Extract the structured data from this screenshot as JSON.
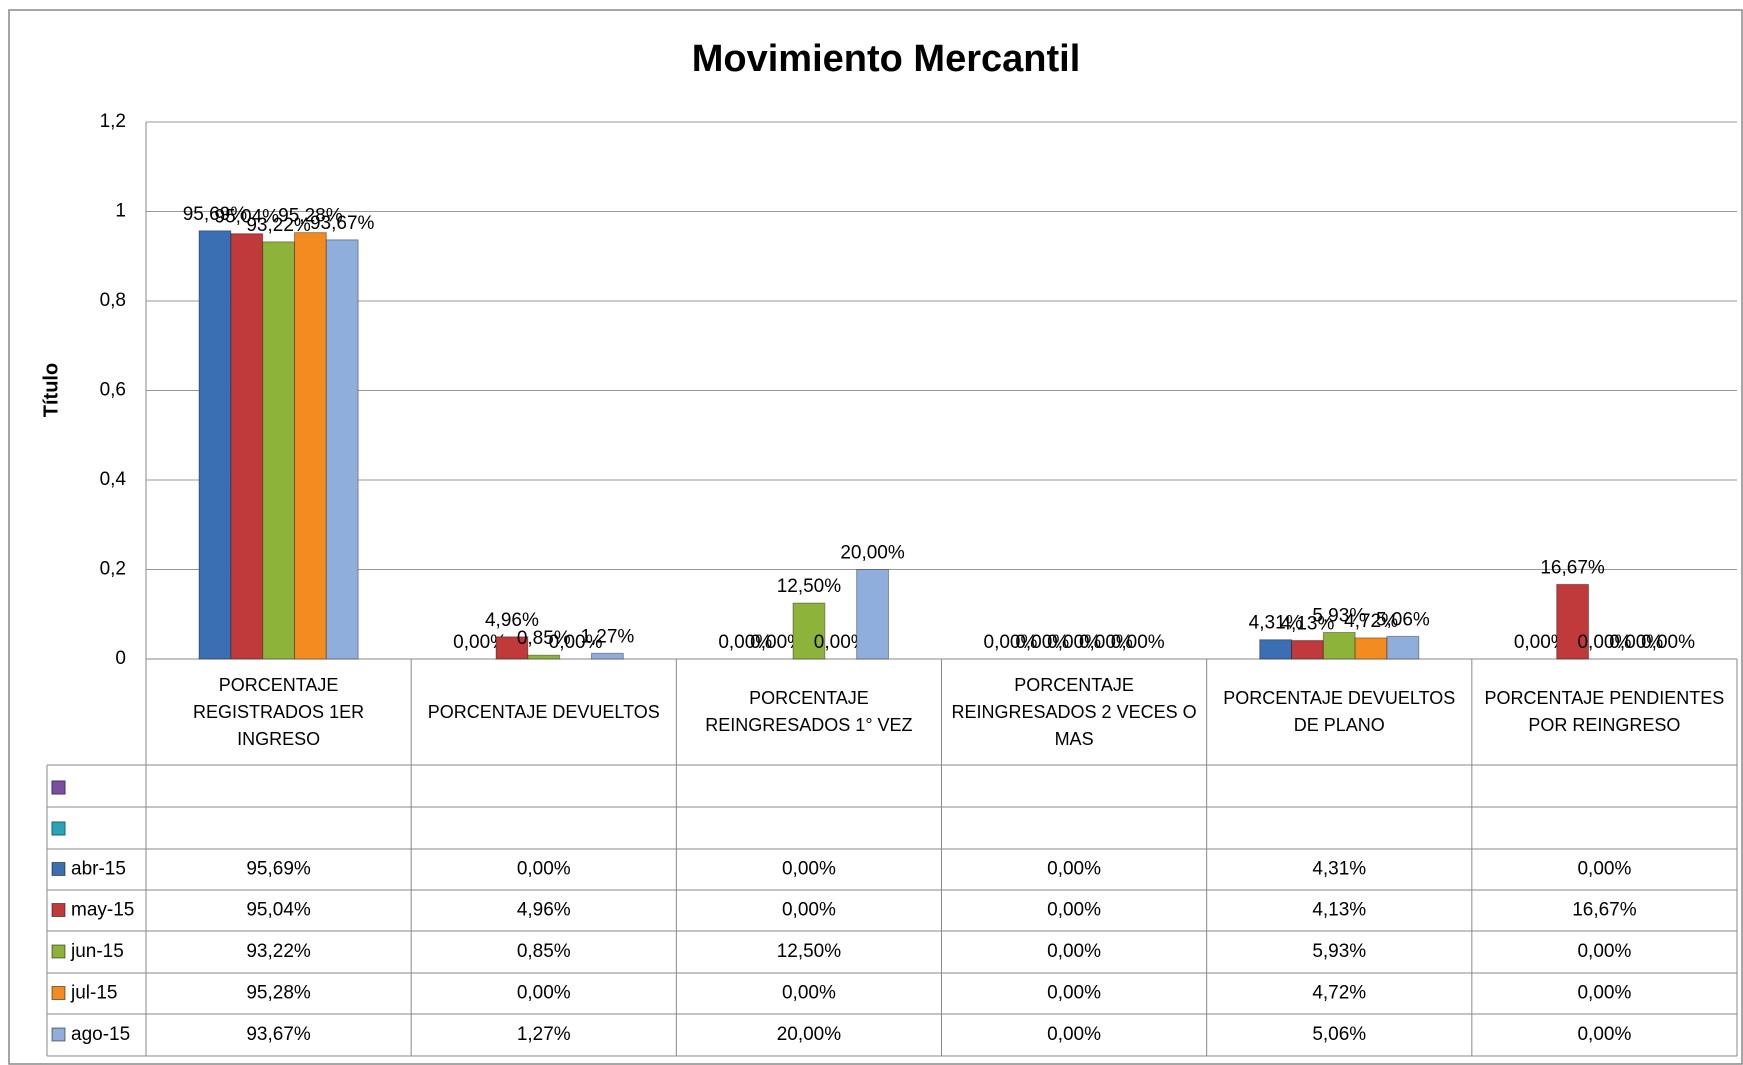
{
  "chart_data": {
    "type": "bar",
    "title": "Movimiento Mercantil",
    "y_label": "Título",
    "categories": [
      "PORCENTAJE REGISTRADOS 1ER INGRESO",
      "PORCENTAJE DEVUELTOS",
      "PORCENTAJE REINGRESADOS 1° VEZ",
      "PORCENTAJE REINGRESADOS 2 VECES O MAS",
      "PORCENTAJE  DEVUELTOS DE PLANO",
      "PORCENTAJE PENDIENTES POR REINGRESO"
    ],
    "series": [
      {
        "name": "abr-15",
        "color": "#3a6fb4",
        "values": [
          0.9569,
          0,
          0,
          0,
          0.0431,
          0
        ],
        "value_labels": [
          "95,69%",
          "0,00%",
          "0,00%",
          "0,00%",
          "4,31%",
          "0,00%"
        ]
      },
      {
        "name": "may-15",
        "color": "#c0393b",
        "values": [
          0.9504,
          0.0496,
          0,
          0,
          0.0413,
          0.1667
        ],
        "value_labels": [
          "95,04%",
          "4,96%",
          "0,00%",
          "0,00%",
          "4,13%",
          "16,67%"
        ]
      },
      {
        "name": "jun-15",
        "color": "#8db33a",
        "values": [
          0.9322,
          0.0085,
          0.125,
          0,
          0.0593,
          0
        ],
        "value_labels": [
          "93,22%",
          "0,85%",
          "12,50%",
          "0,00%",
          "5,93%",
          "0,00%"
        ]
      },
      {
        "name": "jul-15",
        "color": "#f38b21",
        "values": [
          0.9528,
          0,
          0,
          0,
          0.0472,
          0
        ],
        "value_labels": [
          "95,28%",
          "0,00%",
          "0,00%",
          "0,00%",
          "4,72%",
          "0,00%"
        ]
      },
      {
        "name": "ago-15",
        "color": "#8faedb",
        "values": [
          0.9367,
          0.0127,
          0.2,
          0,
          0.0506,
          0
        ],
        "value_labels": [
          "93,67%",
          "1,27%",
          "20,00%",
          "0,00%",
          "5,06%",
          "0,00%"
        ]
      }
    ],
    "ylim": [
      0,
      1.2
    ],
    "yticks": [
      0,
      {
        "value": 0.2,
        "label": "0,2"
      },
      {
        "value": 0.4,
        "label": "0,4"
      },
      {
        "value": 0.6,
        "label": "0,6"
      },
      {
        "value": 0.8,
        "label": "0,8"
      },
      1,
      {
        "value": 1.2,
        "label": "1,2"
      }
    ],
    "grid": true
  }
}
